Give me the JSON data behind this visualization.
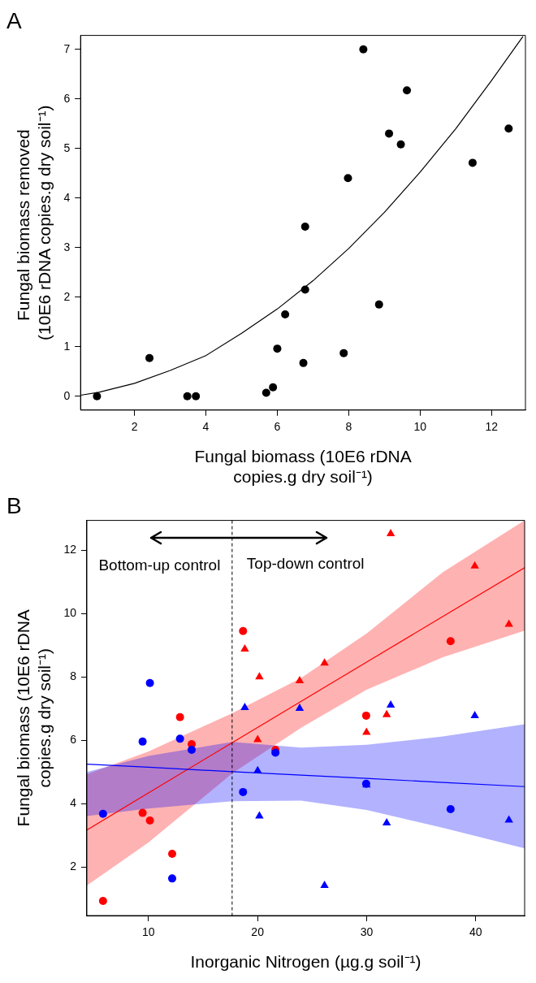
{
  "chart_data": [
    {
      "type": "scatter",
      "title": "A",
      "xlabel": "Fungal biomass (10E6 rDNA copies.g dry soil⁻¹)",
      "ylabel": "Fungal biomass removed  (10E6 rDNA copies.g dry soil⁻¹)",
      "xlim": [
        0.49,
        12.95
      ],
      "ylim": [
        -0.28,
        7.28
      ],
      "xticks": [
        2,
        4,
        6,
        8,
        10,
        12
      ],
      "yticks": [
        0,
        1,
        2,
        3,
        4,
        5,
        6,
        7
      ],
      "grid": false,
      "legend": false,
      "series": [
        {
          "type": "scatter",
          "marker": "circle",
          "color": "#000000",
          "x": [
            0.95,
            2.42,
            3.48,
            3.72,
            5.69,
            5.88,
            6.0,
            6.22,
            6.73,
            6.78,
            6.78,
            7.86,
            7.98,
            8.41,
            8.85,
            9.13,
            9.46,
            9.63,
            11.47,
            12.48
          ],
          "values": [
            0,
            0.77,
            0,
            0,
            0.07,
            0.18,
            0.96,
            1.65,
            0.67,
            2.15,
            3.42,
            0.87,
            4.4,
            7.0,
            1.85,
            5.3,
            5.08,
            6.17,
            4.71,
            5.4
          ]
        },
        {
          "type": "line",
          "marker": "none",
          "color": "#000000",
          "x": [
            0.49,
            1,
            2,
            3,
            4,
            5,
            6,
            7,
            8,
            9,
            10,
            11,
            12,
            12.88
          ],
          "values": [
            0.02,
            0.08,
            0.26,
            0.52,
            0.82,
            1.27,
            1.76,
            2.33,
            2.98,
            3.71,
            4.52,
            5.4,
            6.37,
            7.26
          ]
        }
      ]
    },
    {
      "type": "scatter",
      "title": "B",
      "xlabel": "Inorganic Nitrogen (µg.g soil⁻¹)",
      "ylabel": "Fungal biomass (10E6 rDNA copies.g dry soil⁻¹)",
      "xlim": [
        4.35,
        44.49
      ],
      "ylim": [
        0.47,
        12.94
      ],
      "xticks": [
        10,
        20,
        30,
        40
      ],
      "yticks": [
        2,
        4,
        6,
        8,
        10,
        12
      ],
      "grid": false,
      "legend": false,
      "annotations": [
        "Bottom-up control",
        "Top-down control"
      ],
      "ref_lines": [
        {
          "axis": "x",
          "value": 17.67,
          "color": "#000000",
          "line_style": "dashed"
        }
      ],
      "series": [
        {
          "type": "scatter",
          "marker": "circle",
          "color": "#ff0000",
          "x": [
            5.83,
            9.46,
            10.13,
            12.17,
            12.89,
            13.96,
            18.67,
            21.64,
            29.96,
            37.7
          ],
          "values": [
            0.93,
            3.71,
            3.47,
            2.42,
            6.73,
            5.88,
            9.45,
            5.7,
            6.78,
            9.13
          ]
        },
        {
          "type": "scatter",
          "marker": "triangle",
          "color": "#ff0000",
          "x": [
            18.83,
            20.17,
            20.01,
            23.86,
            26.14,
            29.99,
            31.84,
            32.21,
            39.92,
            43.05
          ],
          "values": [
            8.88,
            8.0,
            6.02,
            7.88,
            8.44,
            6.25,
            6.81,
            12.52,
            11.5,
            9.66
          ]
        },
        {
          "type": "scatter",
          "marker": "circle",
          "color": "#0000ff",
          "x": [
            5.83,
            9.46,
            10.13,
            12.17,
            12.89,
            13.96,
            18.67,
            21.64,
            29.96,
            37.7
          ],
          "values": [
            3.68,
            5.96,
            7.81,
            1.64,
            6.05,
            5.7,
            4.37,
            5.61,
            4.63,
            3.83
          ]
        },
        {
          "type": "scatter",
          "marker": "triangle",
          "color": "#0000ff",
          "x": [
            18.83,
            20.01,
            20.17,
            23.86,
            26.14,
            29.99,
            31.84,
            32.21,
            39.92,
            43.05
          ],
          "values": [
            7.03,
            5.04,
            3.61,
            7.01,
            1.42,
            4.59,
            3.39,
            7.11,
            6.78,
            3.48
          ]
        },
        {
          "type": "line",
          "marker": "none",
          "color": "#0000ff",
          "x": [
            4.35,
            10,
            17.7,
            24,
            30,
            37,
            44.49
          ],
          "values": [
            5.25,
            5.15,
            5.01,
            4.9,
            4.8,
            4.67,
            4.54
          ],
          "lower": [
            3.61,
            3.85,
            4.08,
            4.1,
            3.8,
            3.24,
            2.59
          ],
          "upper": [
            5.0,
            5.51,
            5.95,
            5.77,
            5.86,
            6.12,
            6.51
          ]
        },
        {
          "type": "line",
          "marker": "none",
          "color": "#ff0000",
          "x": [
            4.35,
            10,
            17.7,
            24,
            30,
            37,
            44.49
          ],
          "values": [
            3.17,
            4.34,
            5.93,
            7.23,
            8.47,
            9.91,
            11.45
          ],
          "lower": [
            1.42,
            2.78,
            4.96,
            6.4,
            7.6,
            8.62,
            9.46
          ],
          "upper": [
            4.93,
            5.65,
            6.86,
            7.97,
            9.37,
            11.31,
            12.94
          ]
        }
      ]
    }
  ]
}
